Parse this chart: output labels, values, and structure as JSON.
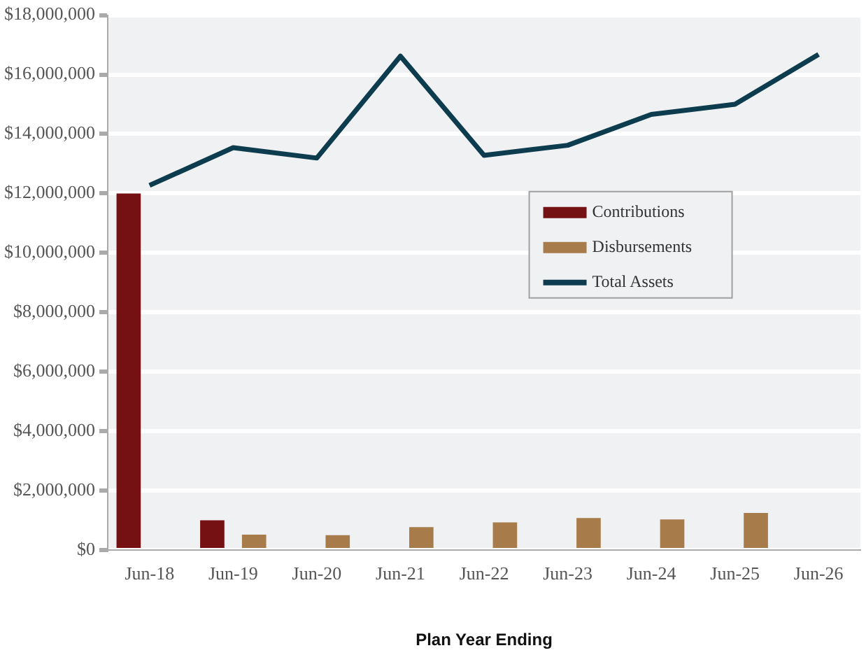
{
  "chart_data": {
    "type": "bar",
    "xlabel": "Plan Year Ending",
    "categories": [
      "Jun-18",
      "Jun-19",
      "Jun-20",
      "Jun-21",
      "Jun-22",
      "Jun-23",
      "Jun-24",
      "Jun-25",
      "Jun-26"
    ],
    "series": [
      {
        "name": "Contributions",
        "color": "#751113",
        "values": [
          12000000,
          1000000,
          null,
          null,
          null,
          null,
          null,
          null,
          null
        ]
      },
      {
        "name": "Disbursements",
        "color": "#a87c4a",
        "values": [
          null,
          520000,
          500000,
          770000,
          930000,
          1080000,
          1030000,
          1250000,
          null
        ]
      },
      {
        "name": "Total Assets",
        "type": "line",
        "color": "#0e3c4f",
        "values": [
          12270000,
          13540000,
          13190000,
          16620000,
          13280000,
          13620000,
          14660000,
          15000000,
          16680000
        ]
      }
    ],
    "ylim": [
      0,
      18000000
    ],
    "yticks": [
      {
        "value": 0,
        "label": "$0"
      },
      {
        "value": 2000000,
        "label": "$2,000,000"
      },
      {
        "value": 4000000,
        "label": "$4,000,000"
      },
      {
        "value": 6000000,
        "label": "$6,000,000"
      },
      {
        "value": 8000000,
        "label": "$8,000,000"
      },
      {
        "value": 10000000,
        "label": "$10,000,000"
      },
      {
        "value": 12000000,
        "label": "$12,000,000"
      },
      {
        "value": 14000000,
        "label": "$14,000,000"
      },
      {
        "value": 16000000,
        "label": "$16,000,000"
      },
      {
        "value": 18000000,
        "label": "$18,000,000"
      }
    ],
    "grid": "y",
    "legend": "right",
    "marker": "none"
  }
}
